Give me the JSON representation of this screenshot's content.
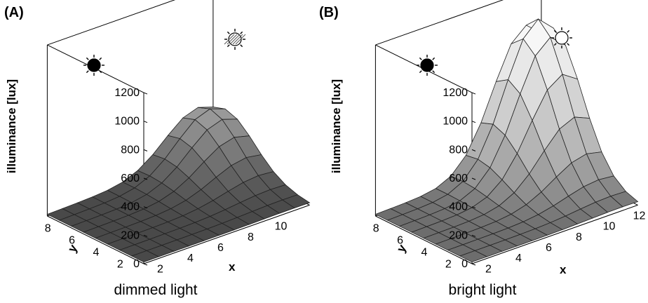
{
  "chart_data": [
    {
      "type": "surface3d",
      "panel_label": "(A)",
      "caption": "dimmed light",
      "zlabel": "illuminance [lux]",
      "xlabel": "x",
      "ylabel": "y",
      "zlim": [
        0,
        1200
      ],
      "z_ticks": [
        0,
        200,
        400,
        600,
        800,
        1000,
        1200
      ],
      "x_ticks": [
        2,
        4,
        6,
        8,
        10
      ],
      "y_ticks": [
        8,
        6,
        4,
        2
      ],
      "x_range": [
        1,
        12
      ],
      "y_range": [
        1,
        9
      ],
      "peak": {
        "x": 11,
        "y": 8,
        "value": 420
      },
      "icons": [
        "dark-sun-icon",
        "hatched-sun-icon"
      ],
      "icon_colors": {
        "dark": "#000000",
        "hatched": "#555555"
      },
      "surface_color": "#505050"
    },
    {
      "type": "surface3d",
      "panel_label": "(B)",
      "caption": "bright light",
      "zlabel": "illuminance [lux]",
      "xlabel": "x",
      "ylabel": "y",
      "zlim": [
        0,
        1200
      ],
      "z_ticks": [
        0,
        200,
        400,
        600,
        800,
        1000,
        1200
      ],
      "x_ticks": [
        2,
        4,
        6,
        8,
        10,
        12
      ],
      "y_ticks": [
        8,
        6,
        4,
        2
      ],
      "x_range": [
        1,
        12
      ],
      "y_range": [
        1,
        9
      ],
      "peak": {
        "x": 11,
        "y": 8,
        "value": 1050
      },
      "icons": [
        "dark-sun-icon",
        "open-sun-icon"
      ],
      "icon_colors": {
        "dark": "#000000",
        "open": "#ffffff"
      },
      "surface_color": "#ffffff"
    }
  ]
}
